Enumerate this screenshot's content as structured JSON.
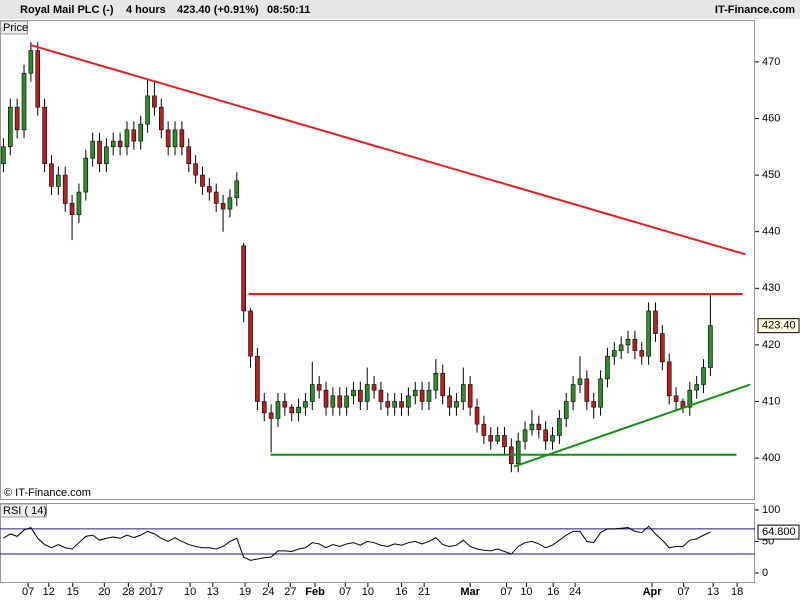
{
  "chart_data": [
    {
      "type": "candlestick",
      "title": "Royal Mail PLC (-)",
      "interval": "4 hours",
      "price_change": "423.40 (+0.91%)",
      "time": "08:50:11",
      "source": "IT-Finance.com",
      "price_label": "Price",
      "copyright": "© IT-Finance.com",
      "last_label": "423.40",
      "last_value": 423.4,
      "up_color": "#2e8b2e",
      "down_color": "#b22222",
      "xlim": [
        -0.5,
        109.5
      ],
      "ylim": [
        392.6,
        477.4
      ],
      "yticks": [
        400,
        410,
        420,
        430,
        440,
        450,
        460,
        470
      ],
      "xticks": [
        {
          "value": 3.6,
          "label": "07"
        },
        {
          "value": 6.6,
          "label": "12"
        },
        {
          "value": 10.1,
          "label": "15"
        },
        {
          "value": 14.7,
          "label": "20"
        },
        {
          "value": 18.2,
          "label": "28"
        },
        {
          "value": 21.5,
          "label": "2017"
        },
        {
          "value": 27.2,
          "label": "10"
        },
        {
          "value": 30.5,
          "label": "13"
        },
        {
          "value": 35.2,
          "label": "19"
        },
        {
          "value": 38.6,
          "label": "24"
        },
        {
          "value": 41.8,
          "label": "27"
        },
        {
          "value": 45.4,
          "label": "Feb"
        },
        {
          "value": 49.8,
          "label": "07"
        },
        {
          "value": 53.1,
          "label": "10"
        },
        {
          "value": 58,
          "label": "16"
        },
        {
          "value": 61.3,
          "label": "21"
        },
        {
          "value": 68,
          "label": "Mar"
        },
        {
          "value": 73.3,
          "label": "07"
        },
        {
          "value": 76.2,
          "label": "10"
        },
        {
          "value": 80.1,
          "label": "16"
        },
        {
          "value": 83.3,
          "label": "24"
        },
        {
          "value": 94.5,
          "label": "Apr"
        },
        {
          "value": 99.1,
          "label": "07"
        },
        {
          "value": 103.4,
          "label": "13"
        },
        {
          "value": 106.9,
          "label": "18"
        }
      ],
      "x": [
        0,
        1,
        2,
        3,
        4,
        5,
        6,
        7,
        8,
        9,
        10,
        11,
        12,
        13,
        14,
        15,
        16,
        17,
        18,
        19,
        20,
        21,
        22,
        23,
        24,
        25,
        26,
        27,
        28,
        29,
        30,
        31,
        32,
        33,
        34,
        35,
        36,
        37,
        38,
        39,
        40,
        41,
        42,
        43,
        44,
        45,
        46,
        47,
        48,
        49,
        50,
        51,
        52,
        53,
        54,
        55,
        56,
        57,
        58,
        59,
        60,
        61,
        62,
        63,
        64,
        65,
        66,
        67,
        68,
        69,
        70,
        71,
        72,
        73,
        74,
        75,
        76,
        77,
        78,
        79,
        80,
        81,
        82,
        83,
        84,
        85,
        86,
        87,
        88,
        89,
        90,
        91,
        92,
        93,
        94,
        95,
        96,
        97,
        98,
        99,
        100,
        101,
        102,
        103
      ],
      "candles": [
        [
          452,
          456.5,
          450.5,
          455
        ],
        [
          455,
          463.5,
          453.5,
          462
        ],
        [
          462,
          463.5,
          456.5,
          458
        ],
        [
          458,
          469.5,
          456.5,
          468
        ],
        [
          468,
          473.5,
          466.5,
          472
        ],
        [
          472,
          473.5,
          460.5,
          462
        ],
        [
          462,
          463.5,
          450.5,
          452
        ],
        [
          452,
          453.5,
          446.5,
          448
        ],
        [
          448,
          451.5,
          446.5,
          450
        ],
        [
          450,
          451.5,
          443.5,
          445
        ],
        [
          445,
          446.5,
          438.5,
          443
        ],
        [
          443,
          448.5,
          441.5,
          447
        ],
        [
          447,
          454.5,
          445.5,
          453
        ],
        [
          453,
          457.5,
          451.5,
          456
        ],
        [
          456,
          457.5,
          450.5,
          452
        ],
        [
          452,
          456.5,
          450.5,
          455
        ],
        [
          455,
          457.5,
          453.5,
          456
        ],
        [
          456,
          457.5,
          453.5,
          455
        ],
        [
          455,
          459.5,
          453.5,
          458
        ],
        [
          458,
          459.5,
          454.5,
          456
        ],
        [
          456,
          460.5,
          454.5,
          459
        ],
        [
          459,
          467,
          457.5,
          464
        ],
        [
          464,
          466.5,
          460.5,
          462
        ],
        [
          462,
          463.5,
          456.5,
          458
        ],
        [
          458,
          459.5,
          453.5,
          455
        ],
        [
          455,
          459.5,
          453.5,
          458
        ],
        [
          458,
          459.5,
          453.5,
          455
        ],
        [
          455,
          456.5,
          450.5,
          452
        ],
        [
          452,
          453.5,
          448.5,
          450
        ],
        [
          450,
          451.5,
          446.5,
          448
        ],
        [
          448,
          449.5,
          445.5,
          447
        ],
        [
          447,
          448.5,
          443.5,
          445
        ],
        [
          445,
          446.5,
          440,
          444
        ],
        [
          444,
          447.5,
          442.5,
          446
        ],
        [
          446,
          450.5,
          444.5,
          449
        ],
        [
          437.5,
          438,
          424,
          426
        ],
        [
          426,
          426.5,
          416,
          418
        ],
        [
          418,
          419.5,
          408.5,
          410
        ],
        [
          410,
          411.5,
          406.5,
          408
        ],
        [
          408,
          409.5,
          401,
          407
        ],
        [
          407,
          411.5,
          405.5,
          410
        ],
        [
          410,
          411.5,
          407.5,
          409
        ],
        [
          409,
          409.5,
          406.5,
          408
        ],
        [
          408,
          410.5,
          406.5,
          409
        ],
        [
          409,
          411.5,
          407.5,
          410
        ],
        [
          410,
          417,
          408.5,
          413
        ],
        [
          413,
          414.5,
          410.5,
          412
        ],
        [
          412,
          413.5,
          407.5,
          409
        ],
        [
          409,
          412.5,
          407.5,
          411
        ],
        [
          411,
          412.5,
          407.5,
          409
        ],
        [
          409,
          412.5,
          407.5,
          411
        ],
        [
          411,
          413.5,
          409.5,
          412
        ],
        [
          412,
          413.5,
          408.5,
          410
        ],
        [
          410,
          416,
          408.5,
          413
        ],
        [
          413,
          414.5,
          410.5,
          412
        ],
        [
          412,
          413.5,
          408.5,
          410
        ],
        [
          410,
          411.5,
          407.5,
          409
        ],
        [
          409,
          411.5,
          407.5,
          410
        ],
        [
          410,
          411.5,
          407.5,
          409
        ],
        [
          409,
          412.5,
          407.5,
          411
        ],
        [
          411,
          413.5,
          409.5,
          412
        ],
        [
          412,
          413.5,
          408.5,
          410
        ],
        [
          410,
          413.5,
          408.5,
          412
        ],
        [
          412,
          417.5,
          410.5,
          415
        ],
        [
          415,
          416.5,
          409.5,
          411
        ],
        [
          411,
          412.5,
          407.5,
          409
        ],
        [
          409,
          411.5,
          407.5,
          410
        ],
        [
          410,
          416,
          408.5,
          413
        ],
        [
          413,
          414.5,
          407.5,
          409
        ],
        [
          409,
          410.5,
          404.5,
          406
        ],
        [
          406,
          407.5,
          402.5,
          404
        ],
        [
          404,
          405.5,
          401.5,
          403
        ],
        [
          403,
          405.5,
          402.5,
          404
        ],
        [
          404,
          405.5,
          400.5,
          402
        ],
        [
          402,
          403.5,
          397.5,
          399
        ],
        [
          399,
          404.5,
          397.5,
          403
        ],
        [
          403,
          406.5,
          401.5,
          405
        ],
        [
          405,
          408.5,
          404,
          406
        ],
        [
          406,
          407.5,
          403.5,
          405
        ],
        [
          405,
          406.5,
          401.5,
          403
        ],
        [
          403,
          405.5,
          401.5,
          404
        ],
        [
          404,
          408.5,
          402.5,
          407
        ],
        [
          407,
          411.5,
          405.5,
          410
        ],
        [
          410,
          414.5,
          408.5,
          413
        ],
        [
          413,
          418,
          411.5,
          414
        ],
        [
          414,
          415.5,
          408.5,
          410
        ],
        [
          410,
          411.5,
          407,
          409
        ],
        [
          409,
          415.5,
          407.5,
          414
        ],
        [
          414,
          419.5,
          412.5,
          418
        ],
        [
          418,
          420.5,
          416.5,
          419
        ],
        [
          419,
          421.5,
          417.5,
          420
        ],
        [
          420,
          422.5,
          418.5,
          421
        ],
        [
          421,
          422.5,
          417.5,
          419
        ],
        [
          419,
          420.5,
          416.5,
          418
        ],
        [
          418,
          427.5,
          416.5,
          426
        ],
        [
          426,
          427.5,
          420.5,
          422
        ],
        [
          422,
          423.5,
          415.5,
          417
        ],
        [
          417,
          418.5,
          409.5,
          411
        ],
        [
          411,
          412.5,
          408.5,
          410
        ],
        [
          410,
          410.5,
          408,
          409
        ],
        [
          409,
          413.5,
          407.5,
          412
        ],
        [
          412,
          414.5,
          410.5,
          413
        ],
        [
          413,
          417.5,
          411.5,
          416
        ],
        [
          416,
          428.8,
          414.5,
          423.4
        ]
      ],
      "trendlines": [
        {
          "color": "#e02020",
          "x": [
            3.9,
            108.1
          ],
          "y": [
            473,
            436
          ]
        },
        {
          "color": "#e02020",
          "x": [
            35.7,
            107.7
          ],
          "y": [
            429,
            429
          ]
        },
        {
          "color": "#1a8c1a",
          "x": [
            38.9,
            106.8
          ],
          "y": [
            400.6,
            400.6
          ]
        },
        {
          "color": "#1a8c1a",
          "x": [
            74.4,
            108.8
          ],
          "y": [
            398.5,
            413
          ]
        }
      ]
    },
    {
      "type": "line",
      "title": "RSI ( 14)",
      "color": "#000000",
      "ylim": [
        -16,
        111
      ],
      "yticks": [
        0,
        50,
        100
      ],
      "bands": [
        70,
        30
      ],
      "band_color": "#1a1a8c",
      "last_label": "64.800",
      "values": [
        55,
        62,
        58,
        68,
        72,
        55,
        45,
        40,
        45,
        40,
        38,
        48,
        58,
        60,
        52,
        55,
        57,
        55,
        60,
        56,
        60,
        66,
        62,
        55,
        50,
        56,
        50,
        45,
        42,
        40,
        40,
        38,
        42,
        50,
        55,
        25,
        20,
        22,
        24,
        25,
        35,
        35,
        34,
        38,
        40,
        48,
        46,
        40,
        45,
        42,
        46,
        48,
        44,
        50,
        48,
        44,
        42,
        46,
        44,
        48,
        50,
        46,
        50,
        56,
        45,
        42,
        44,
        52,
        42,
        38,
        36,
        35,
        38,
        34,
        30,
        42,
        48,
        50,
        46,
        40,
        44,
        52,
        60,
        66,
        66,
        50,
        48,
        64,
        70,
        70,
        71,
        72,
        66,
        64,
        74,
        62,
        52,
        40,
        42,
        42,
        52,
        54,
        60,
        64.8
      ]
    }
  ]
}
